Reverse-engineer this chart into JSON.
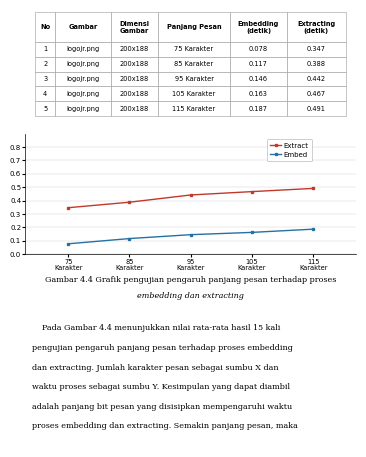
{
  "table_headers": [
    "No",
    "Gambar",
    "Dimensi\nGambar",
    "Panjang Pesan",
    "Embedding\n(detik)",
    "Extracting\n(detik)"
  ],
  "table_data": [
    [
      "1",
      "logojr.png",
      "200x188",
      "75 Karakter",
      "0.078",
      "0.347"
    ],
    [
      "2",
      "logojr.png",
      "200x188",
      "85 Karakter",
      "0.117",
      "0.388"
    ],
    [
      "3",
      "logojr.png",
      "200x188",
      "95 Karakter",
      "0.146",
      "0.442"
    ],
    [
      "4",
      "logojr.png",
      "200x188",
      "105 Karakter",
      "0.163",
      "0.467"
    ],
    [
      "5",
      "logojr.png",
      "200x188",
      "115 Karakter",
      "0.187",
      "0.491"
    ]
  ],
  "x_labels": [
    "75\nKarakter",
    "85\nKarakter",
    "95\nKarakter",
    "105\nKarakter",
    "115\nKarakter"
  ],
  "x_values": [
    75,
    85,
    95,
    105,
    115
  ],
  "extract_values": [
    0.347,
    0.388,
    0.442,
    0.467,
    0.491
  ],
  "embed_values": [
    0.078,
    0.117,
    0.146,
    0.163,
    0.187
  ],
  "extract_color": "#c0392b",
  "embed_color": "#2471a3",
  "ylim": [
    0,
    0.9
  ],
  "yticks": [
    0,
    0.1,
    0.2,
    0.3,
    0.4,
    0.5,
    0.6,
    0.7,
    0.8
  ],
  "bg_color": "#ffffff",
  "col_widths": [
    0.06,
    0.17,
    0.14,
    0.22,
    0.17,
    0.18
  ]
}
